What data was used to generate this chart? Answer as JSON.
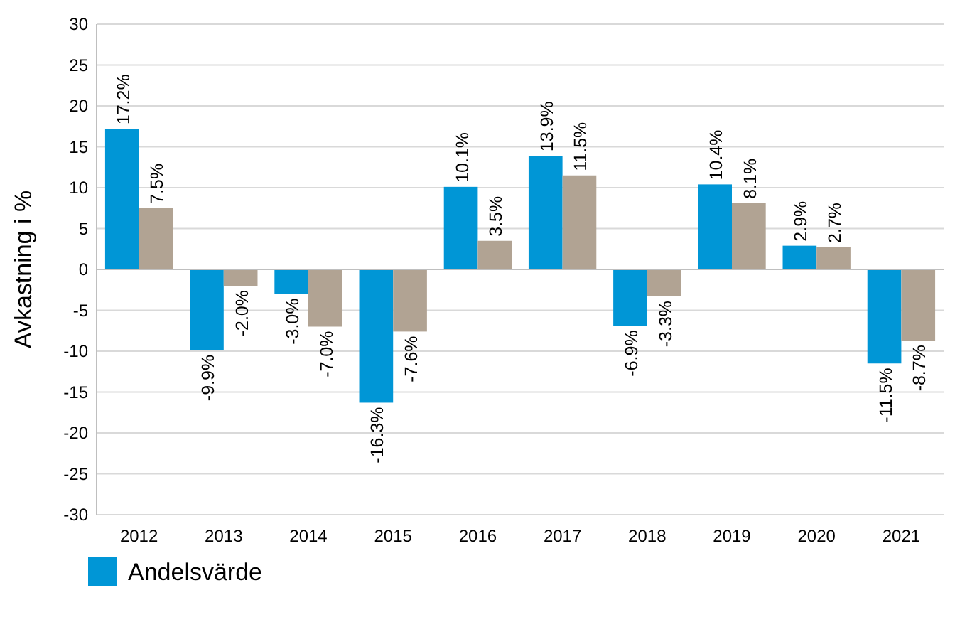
{
  "chart_data": {
    "type": "bar",
    "ylabel": "Avkastning i %",
    "categories": [
      "2012",
      "2013",
      "2014",
      "2015",
      "2016",
      "2017",
      "2018",
      "2019",
      "2020",
      "2021"
    ],
    "series": [
      {
        "name": "Andelsvärde",
        "color": "#0096d6",
        "values": [
          17.2,
          -9.9,
          -3.0,
          -16.3,
          10.1,
          13.9,
          -6.9,
          10.4,
          2.9,
          -11.5
        ],
        "value_labels": [
          "17.2%",
          "-9.9%",
          "-3.0%",
          "-16.3%",
          "10.1%",
          "13.9%",
          "-6.9%",
          "10.4%",
          "2.9%",
          "-11.5%"
        ]
      },
      {
        "color": "#b1a393",
        "values": [
          7.5,
          -2.0,
          -7.0,
          -7.6,
          3.5,
          11.5,
          -3.3,
          8.1,
          2.7,
          -8.7
        ],
        "value_labels": [
          "7.5%",
          "-2.0%",
          "-7.0%",
          "-7.6%",
          "3.5%",
          "11.5%",
          "-3.3%",
          "8.1%",
          "2.7%",
          "-8.7%"
        ]
      }
    ],
    "ylim": [
      -30,
      30
    ],
    "yticks": [
      -30,
      -25,
      -20,
      -15,
      -10,
      -5,
      0,
      5,
      10,
      15,
      20,
      25,
      30
    ],
    "grid": "y",
    "legend": "bottom"
  }
}
